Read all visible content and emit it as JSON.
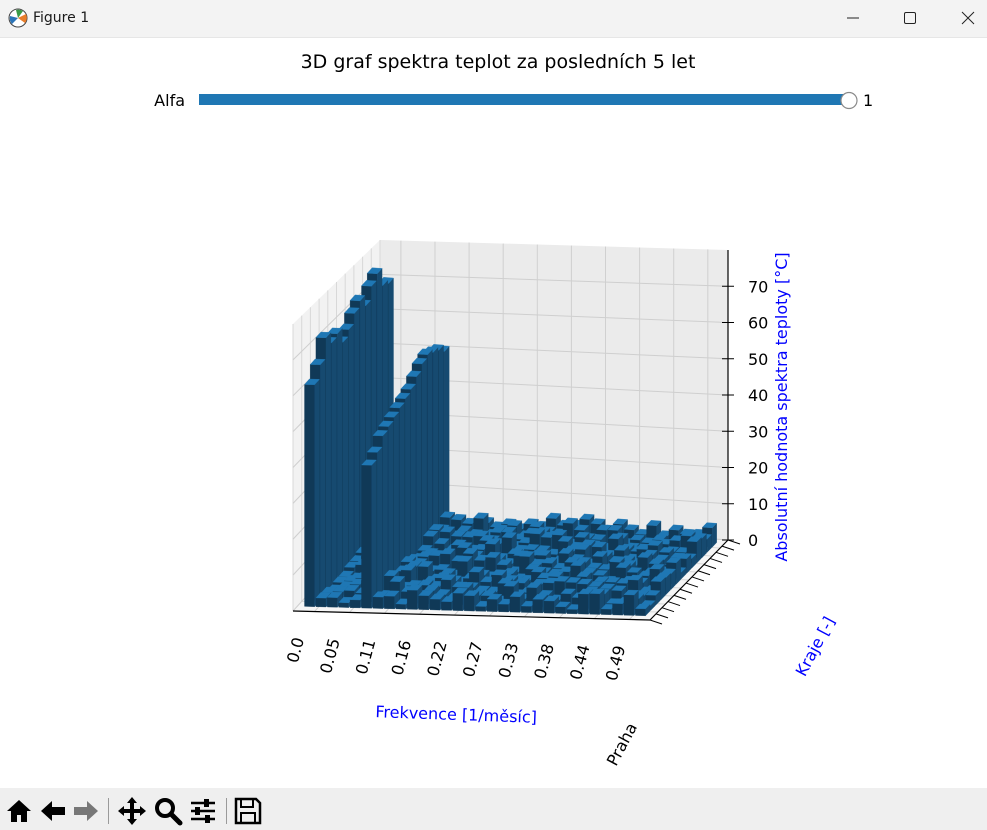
{
  "window": {
    "title": "Figure 1"
  },
  "colors": {
    "bar_top": "#1f77b4",
    "bar_side": "#103957",
    "label_blue": "#0000ff",
    "slider": "#1f77b4"
  },
  "slider": {
    "label": "Alfa",
    "value_text": "1",
    "value": 1
  },
  "toolbar": {
    "buttons": [
      "home-icon",
      "back-icon",
      "forward-icon",
      "pan-icon",
      "zoom-icon",
      "configure-icon",
      "save-icon"
    ]
  },
  "chart_data": {
    "type": "bar3d",
    "title": "3D graf spektra teplot za posledních 5 let",
    "xlabel": "Frekvence [1/měsíc]",
    "ylabel": "Kraje [-]",
    "zlabel": "Absolutní hodnota spektra teploty [°C]",
    "x_ticks": [
      "0.0",
      "0.05",
      "0.11",
      "0.16",
      "0.22",
      "0.27",
      "0.33",
      "0.38",
      "0.44",
      "0.49"
    ],
    "z_ticks": [
      "0",
      "10",
      "20",
      "30",
      "40",
      "50",
      "60",
      "70"
    ],
    "zlim": [
      0,
      80
    ],
    "y_tick_first": "Praha",
    "y_categories": 14,
    "x_bins": 30,
    "peaks": {
      "frequency_0_values": [
        62,
        66,
        72,
        69,
        70,
        66,
        68,
        71,
        73,
        70,
        74,
        76,
        71,
        70
      ],
      "frequency_0_167_values": [
        40,
        42,
        45,
        46,
        47,
        48,
        49,
        50,
        52,
        54,
        55,
        54,
        53,
        51
      ]
    },
    "grid": true
  }
}
